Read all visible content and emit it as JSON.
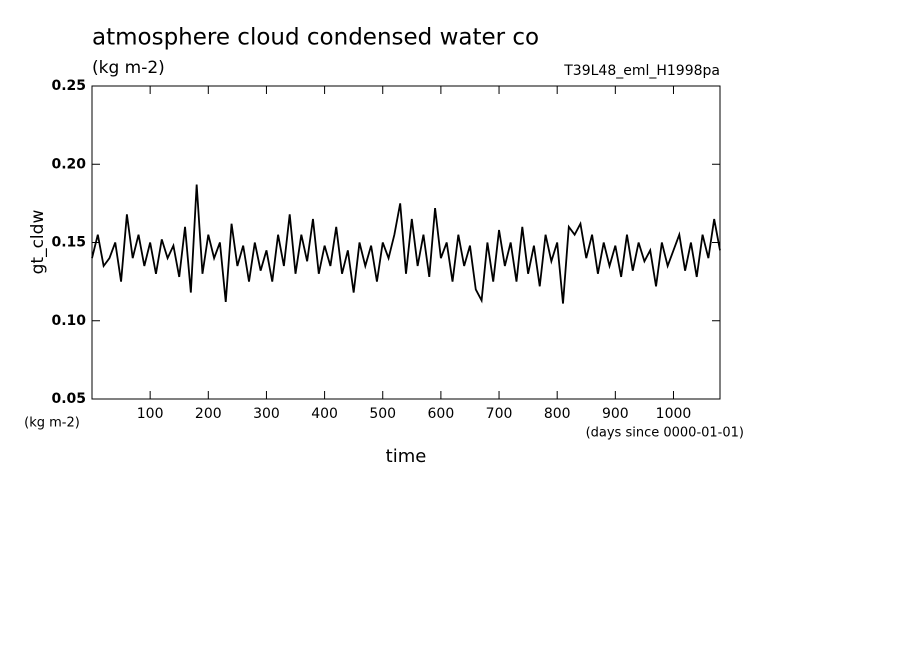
{
  "chart_data": {
    "type": "line",
    "title": "atmosphere cloud condensed water co",
    "subtitle": "(kg m-2)",
    "run_label": "T39L48_eml_H1998pa",
    "y_label": "gt_cldw",
    "y_units": "(kg m-2)",
    "x_label": "time",
    "x_units": "(days since 0000-01-01)",
    "color": "#000000",
    "xlim": [
      0,
      1080
    ],
    "ylim": [
      0.05,
      0.25
    ],
    "xticks": [
      100,
      200,
      300,
      400,
      500,
      600,
      700,
      800,
      900,
      1000
    ],
    "yticks": [
      0.05,
      {
        "value": 0.1,
        "label": "0.10"
      },
      0.15,
      {
        "value": 0.2,
        "label": "0.20"
      },
      0.25
    ],
    "x": [
      0,
      10,
      20,
      30,
      40,
      50,
      60,
      70,
      80,
      90,
      100,
      110,
      120,
      130,
      140,
      150,
      160,
      170,
      180,
      190,
      200,
      210,
      220,
      230,
      240,
      250,
      260,
      270,
      280,
      290,
      300,
      310,
      320,
      330,
      340,
      350,
      360,
      370,
      380,
      390,
      400,
      410,
      420,
      430,
      440,
      450,
      460,
      470,
      480,
      490,
      500,
      510,
      520,
      530,
      540,
      550,
      560,
      570,
      580,
      590,
      600,
      610,
      620,
      630,
      640,
      650,
      660,
      670,
      680,
      690,
      700,
      710,
      720,
      730,
      740,
      750,
      760,
      770,
      780,
      790,
      800,
      810,
      820,
      830,
      840,
      850,
      860,
      870,
      880,
      890,
      900,
      910,
      920,
      930,
      940,
      950,
      960,
      970,
      980,
      990,
      1000,
      1010,
      1020,
      1030,
      1040,
      1050,
      1060,
      1070,
      1080
    ],
    "values": [
      0.14,
      0.155,
      0.135,
      0.14,
      0.15,
      0.125,
      0.168,
      0.14,
      0.155,
      0.135,
      0.15,
      0.13,
      0.152,
      0.14,
      0.148,
      0.128,
      0.16,
      0.118,
      0.187,
      0.13,
      0.155,
      0.14,
      0.15,
      0.112,
      0.162,
      0.135,
      0.148,
      0.125,
      0.15,
      0.132,
      0.145,
      0.125,
      0.155,
      0.135,
      0.168,
      0.13,
      0.155,
      0.138,
      0.165,
      0.13,
      0.148,
      0.135,
      0.16,
      0.13,
      0.145,
      0.118,
      0.15,
      0.135,
      0.148,
      0.125,
      0.15,
      0.14,
      0.155,
      0.175,
      0.13,
      0.165,
      0.135,
      0.155,
      0.128,
      0.172,
      0.14,
      0.15,
      0.125,
      0.155,
      0.135,
      0.148,
      0.12,
      0.113,
      0.15,
      0.125,
      0.158,
      0.135,
      0.15,
      0.125,
      0.16,
      0.13,
      0.148,
      0.122,
      0.155,
      0.138,
      0.15,
      0.111,
      0.16,
      0.155,
      0.162,
      0.14,
      0.155,
      0.13,
      0.15,
      0.135,
      0.148,
      0.128,
      0.155,
      0.132,
      0.15,
      0.138,
      0.145,
      0.122,
      0.15,
      0.135,
      0.145,
      0.155,
      0.132,
      0.15,
      0.128,
      0.155,
      0.14,
      0.165,
      0.145
    ]
  }
}
